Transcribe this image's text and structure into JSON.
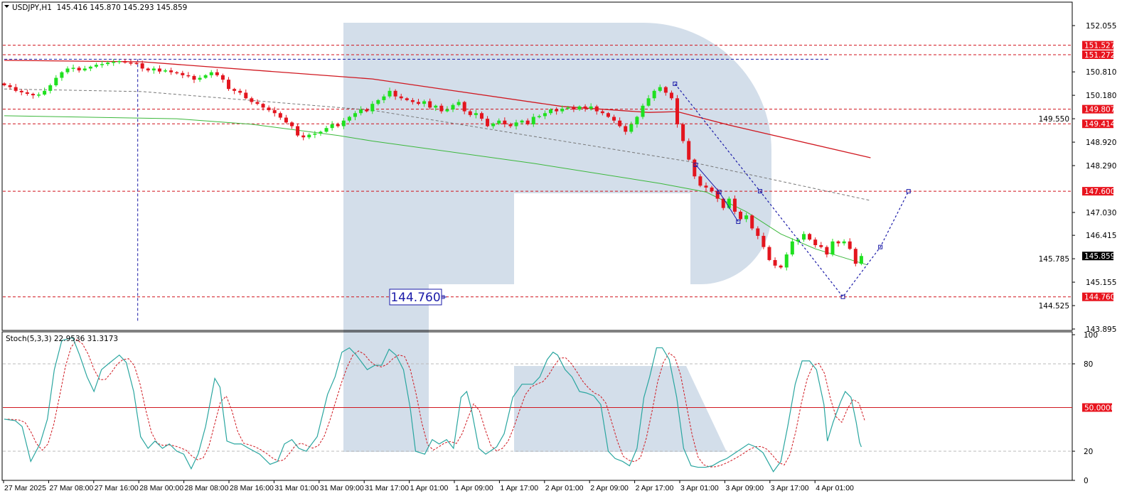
{
  "header": {
    "menu_icon": "triangle-down-icon",
    "title": "USDJPY,H1  145.416 145.870 145.293 145.859"
  },
  "stoch_header": {
    "label": "Stoch(5,3,3) 22.9536 31.3173"
  },
  "chart_data": {
    "type": "candlestick",
    "symbol": "USDJPY",
    "timeframe": "H1",
    "ohlc_last": {
      "open": 145.416,
      "high": 145.87,
      "low": 145.293,
      "close": 145.859
    },
    "colors": {
      "up": "#1fe01f",
      "down": "#e3151e",
      "level": "#d0121b",
      "ma_slow": "#d01820",
      "ma_fast": "#3cb83c",
      "ma_dashed": "#777777",
      "forecast": "#1a1aa8",
      "stoch_main": "#2aa6a0",
      "stoch_signal": "#d01820",
      "watermark": "#d3deea"
    },
    "price_axis": {
      "min": 143.895,
      "max": 152.055,
      "ticks": [
        "152.055",
        "150.810",
        "150.180",
        "149.550",
        "148.920",
        "148.290",
        "147.030",
        "146.415",
        "145.785",
        "145.155",
        "144.525",
        "143.895"
      ]
    },
    "current_price": "145.859",
    "levels": [
      "151.527",
      "151.272",
      "149.807",
      "149.414",
      "147.600",
      "144.760"
    ],
    "target_label": "144.760",
    "first_open": 150.5,
    "closes": [
      150.45,
      150.4,
      150.3,
      150.26,
      150.22,
      150.18,
      150.2,
      150.3,
      150.45,
      150.65,
      150.8,
      150.9,
      150.92,
      150.85,
      150.9,
      150.95,
      151.0,
      151.02,
      151.06,
      151.08,
      151.1,
      151.06,
      151.05,
      151.04,
      150.9,
      150.85,
      150.9,
      150.82,
      150.85,
      150.8,
      150.78,
      150.72,
      150.7,
      150.6,
      150.65,
      150.72,
      150.8,
      150.72,
      150.6,
      150.35,
      150.3,
      150.25,
      150.1,
      150.0,
      149.95,
      149.85,
      149.78,
      149.7,
      149.58,
      149.45,
      149.35,
      149.1,
      149.05,
      149.12,
      149.15,
      149.2,
      149.3,
      149.4,
      149.35,
      149.5,
      149.6,
      149.7,
      149.8,
      149.75,
      149.95,
      150.05,
      150.15,
      150.3,
      150.15,
      150.1,
      150.05,
      150.0,
      149.95,
      150.02,
      149.85,
      149.9,
      149.75,
      149.8,
      149.92,
      150.0,
      149.75,
      149.65,
      149.7,
      149.55,
      149.35,
      149.42,
      149.5,
      149.4,
      149.35,
      149.45,
      149.5,
      149.4,
      149.6,
      149.62,
      149.7,
      149.8,
      149.75,
      149.82,
      149.85,
      149.8,
      149.88,
      149.82,
      149.88,
      149.75,
      149.7,
      149.6,
      149.5,
      149.35,
      149.2,
      149.4,
      149.6,
      149.9,
      150.1,
      150.3,
      150.4,
      150.25,
      150.1,
      149.4,
      148.95,
      148.45,
      148.0,
      147.75,
      147.7,
      147.6,
      147.4,
      147.15,
      147.4,
      147.05,
      146.85,
      146.95,
      146.6,
      146.4,
      146.1,
      145.75,
      145.6,
      145.55,
      145.9,
      146.25,
      146.3,
      146.45,
      146.3,
      146.15,
      146.1,
      145.9,
      146.25,
      146.2,
      146.25,
      146.05,
      145.65,
      145.859
    ],
    "moving_averages": [
      {
        "style": "solid-red",
        "points": [
          [
            0,
            151.12
          ],
          [
            24,
            151.08
          ],
          [
            64,
            150.62
          ],
          [
            97,
            149.88
          ],
          [
            112,
            149.72
          ],
          [
            117,
            149.74
          ],
          [
            126,
            149.38
          ],
          [
            150.6,
            148.5
          ]
        ]
      },
      {
        "style": "solid-green",
        "points": [
          [
            0,
            149.63
          ],
          [
            30,
            149.55
          ],
          [
            43,
            149.4
          ],
          [
            58,
            149.1
          ],
          [
            64,
            148.95
          ],
          [
            92,
            148.35
          ],
          [
            114,
            147.81
          ],
          [
            122,
            147.58
          ],
          [
            129,
            147.05
          ],
          [
            135,
            146.45
          ],
          [
            141,
            146.05
          ],
          [
            150,
            145.62
          ]
        ]
      },
      {
        "style": "dashed-gray",
        "points": [
          [
            0,
            150.35
          ],
          [
            24,
            150.28
          ],
          [
            64,
            149.78
          ],
          [
            119,
            148.4
          ],
          [
            150.6,
            147.35
          ]
        ]
      }
    ],
    "forecast_path": [
      [
        116.6,
        150.49
      ],
      [
        131.4,
        147.6
      ],
      [
        145.8,
        144.76
      ],
      [
        152.3,
        146.1
      ],
      [
        157.2,
        147.6
      ]
    ],
    "wave_segment": [
      [
        120.2,
        148.31
      ],
      [
        124.3,
        147.58
      ],
      [
        127.6,
        146.78
      ]
    ],
    "reference_lines": {
      "horizontal": {
        "price": 151.15,
        "from_bar": 0,
        "to_bar": 143.6
      },
      "vertical": {
        "bar": 23.2,
        "from_price": 151.15,
        "to_price": 144.1
      }
    },
    "time_labels": [
      "27 Mar 2025",
      "27 Mar 08:00",
      "27 Mar 16:00",
      "28 Mar 00:00",
      "28 Mar 08:00",
      "28 Mar 16:00",
      "31 Mar 01:00",
      "31 Mar 09:00",
      "31 Mar 17:00",
      "1 Apr 01:00",
      "1 Apr 09:00",
      "1 Apr 17:00",
      "2 Apr 01:00",
      "2 Apr 09:00",
      "2 Apr 17:00",
      "3 Apr 01:00",
      "3 Apr 09:00",
      "3 Apr 17:00",
      "4 Apr 01:00"
    ],
    "stochastic": {
      "params": "5,3,3",
      "main": 22.9536,
      "signal": 31.3173,
      "range": [
        0,
        100
      ],
      "axis_ticks": [
        "100",
        "80",
        "20",
        "0"
      ],
      "dashed_levels": [
        20,
        80
      ],
      "mid_level": 50,
      "mid_level_label": "50.0000",
      "k_points": [
        [
          0,
          42
        ],
        [
          1.9,
          41
        ],
        [
          3.1,
          37
        ],
        [
          4.6,
          13
        ],
        [
          6.2,
          25
        ],
        [
          7.5,
          42
        ],
        [
          8.7,
          76
        ],
        [
          10,
          96
        ],
        [
          11.9,
          98
        ],
        [
          13.1,
          86
        ],
        [
          14.4,
          71
        ],
        [
          15.6,
          61
        ],
        [
          16.9,
          76
        ],
        [
          18.1,
          80
        ],
        [
          20,
          86
        ],
        [
          21.2,
          81
        ],
        [
          22.5,
          61
        ],
        [
          23.7,
          30
        ],
        [
          25,
          22
        ],
        [
          26.2,
          27
        ],
        [
          27.5,
          22
        ],
        [
          28.7,
          25
        ],
        [
          30,
          20
        ],
        [
          31.2,
          18
        ],
        [
          32.5,
          8
        ],
        [
          33.7,
          18
        ],
        [
          35,
          37
        ],
        [
          36.6,
          70
        ],
        [
          37.5,
          64
        ],
        [
          38.7,
          27
        ],
        [
          40,
          25
        ],
        [
          41.2,
          25
        ],
        [
          42.5,
          22
        ],
        [
          44.4,
          18
        ],
        [
          46.2,
          11
        ],
        [
          47.5,
          13
        ],
        [
          48.7,
          25
        ],
        [
          50,
          28
        ],
        [
          51.2,
          22
        ],
        [
          52.5,
          20
        ],
        [
          54.4,
          30
        ],
        [
          56.2,
          59
        ],
        [
          57.5,
          71
        ],
        [
          58.7,
          88
        ],
        [
          60,
          91
        ],
        [
          61.2,
          86
        ],
        [
          63.1,
          76
        ],
        [
          64.4,
          79
        ],
        [
          65.6,
          79
        ],
        [
          66.9,
          90
        ],
        [
          68.1,
          86
        ],
        [
          69.4,
          76
        ],
        [
          70.6,
          49
        ],
        [
          71.5,
          20
        ],
        [
          73.1,
          18
        ],
        [
          74.4,
          28
        ],
        [
          75.6,
          25
        ],
        [
          76.9,
          28
        ],
        [
          78.1,
          22
        ],
        [
          79.4,
          57
        ],
        [
          80.4,
          61
        ],
        [
          81.2,
          49
        ],
        [
          82.5,
          22
        ],
        [
          83.7,
          18
        ],
        [
          85.6,
          23
        ],
        [
          86.9,
          32
        ],
        [
          88.4,
          57
        ],
        [
          90,
          66
        ],
        [
          91.9,
          66
        ],
        [
          93.1,
          71
        ],
        [
          94.4,
          83
        ],
        [
          95.4,
          88
        ],
        [
          96.2,
          86
        ],
        [
          97.5,
          76
        ],
        [
          98.7,
          71
        ],
        [
          100,
          61
        ],
        [
          101.2,
          60
        ],
        [
          102.5,
          58
        ],
        [
          103.7,
          52
        ],
        [
          105,
          20
        ],
        [
          106.2,
          15
        ],
        [
          107.5,
          13
        ],
        [
          108.7,
          10
        ],
        [
          110,
          22
        ],
        [
          111.2,
          57
        ],
        [
          112.2,
          71
        ],
        [
          113.4,
          91
        ],
        [
          114.4,
          91
        ],
        [
          115.6,
          83
        ],
        [
          116.9,
          57
        ],
        [
          118.1,
          22
        ],
        [
          119.4,
          10
        ],
        [
          120.6,
          9
        ],
        [
          121.9,
          9
        ],
        [
          123.1,
          10
        ],
        [
          124.4,
          13
        ],
        [
          125.6,
          15
        ],
        [
          127.5,
          20
        ],
        [
          129.4,
          25
        ],
        [
          130.6,
          23
        ],
        [
          131.9,
          19
        ],
        [
          133.7,
          6
        ],
        [
          135,
          13
        ],
        [
          136.2,
          37
        ],
        [
          137.5,
          66
        ],
        [
          138.7,
          82
        ],
        [
          140,
          82
        ],
        [
          141.2,
          76
        ],
        [
          142.5,
          52
        ],
        [
          143.1,
          27
        ],
        [
          144.1,
          40
        ],
        [
          145.4,
          54
        ],
        [
          146.2,
          61
        ],
        [
          147.2,
          57
        ],
        [
          148.1,
          40
        ],
        [
          148.7,
          26
        ],
        [
          149,
          22.95
        ]
      ]
    }
  }
}
